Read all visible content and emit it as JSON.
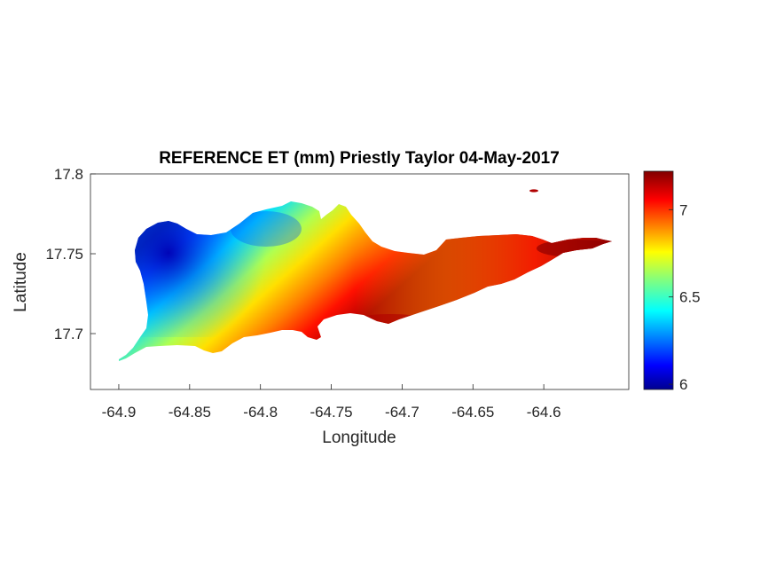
{
  "figure": {
    "title": "REFERENCE ET (mm) Priestly Taylor 04-May-2017",
    "xlabel": "Longitude",
    "ylabel": "Latitude"
  },
  "chart_data": {
    "type": "heatmap",
    "title": "REFERENCE ET (mm) Priestly Taylor 04-May-2017",
    "xlabel": "Longitude",
    "ylabel": "Latitude",
    "xlim": [
      -64.92,
      -64.54
    ],
    "ylim": [
      17.665,
      17.8
    ],
    "x_ticks": [
      -64.9,
      -64.85,
      -64.8,
      -64.75,
      -64.7,
      -64.65,
      -64.6
    ],
    "x_tick_labels": [
      "-64.9",
      "-64.85",
      "-64.8",
      "-64.75",
      "-64.7",
      "-64.65",
      "-64.6"
    ],
    "y_ticks": [
      17.7,
      17.75,
      17.8
    ],
    "y_tick_labels": [
      "17.7",
      "17.75",
      "17.8"
    ],
    "colorbar": {
      "colormap": "jet",
      "range": [
        5.97,
        7.22
      ],
      "ticks": [
        6,
        6.5,
        7
      ],
      "tick_labels": [
        "6",
        "6.5",
        "7"
      ]
    },
    "grid": false,
    "legend": "none",
    "value_pattern": {
      "low_region": "north-west interior (~6.0)",
      "high_region": "south coast and east end (~7.2)"
    }
  }
}
